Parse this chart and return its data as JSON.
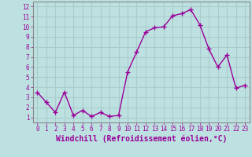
{
  "x": [
    0,
    1,
    2,
    3,
    4,
    5,
    6,
    7,
    8,
    9,
    10,
    11,
    12,
    13,
    14,
    15,
    16,
    17,
    18,
    19,
    20,
    21,
    22,
    23
  ],
  "y": [
    3.5,
    2.5,
    1.5,
    3.5,
    1.2,
    1.7,
    1.1,
    1.5,
    1.1,
    1.2,
    5.5,
    7.5,
    9.5,
    9.9,
    10.0,
    11.1,
    11.3,
    11.7,
    10.2,
    7.8,
    6.0,
    7.2,
    3.9,
    4.2
  ],
  "line_color": "#990099",
  "marker": "+",
  "marker_size": 4,
  "marker_lw": 1.0,
  "bg_color": "#bde0e0",
  "grid_color": "#aacccc",
  "xlabel": "Windchill (Refroidissement éolien,°C)",
  "ylabel": "",
  "xlim": [
    -0.5,
    23.5
  ],
  "ylim": [
    0.5,
    12.5
  ],
  "yticks": [
    1,
    2,
    3,
    4,
    5,
    6,
    7,
    8,
    9,
    10,
    11,
    12
  ],
  "xticks": [
    0,
    1,
    2,
    3,
    4,
    5,
    6,
    7,
    8,
    9,
    10,
    11,
    12,
    13,
    14,
    15,
    16,
    17,
    18,
    19,
    20,
    21,
    22,
    23
  ],
  "tick_label_fontsize": 5.5,
  "xlabel_fontsize": 7.0,
  "line_width": 1.0,
  "spine_color": "#888888"
}
